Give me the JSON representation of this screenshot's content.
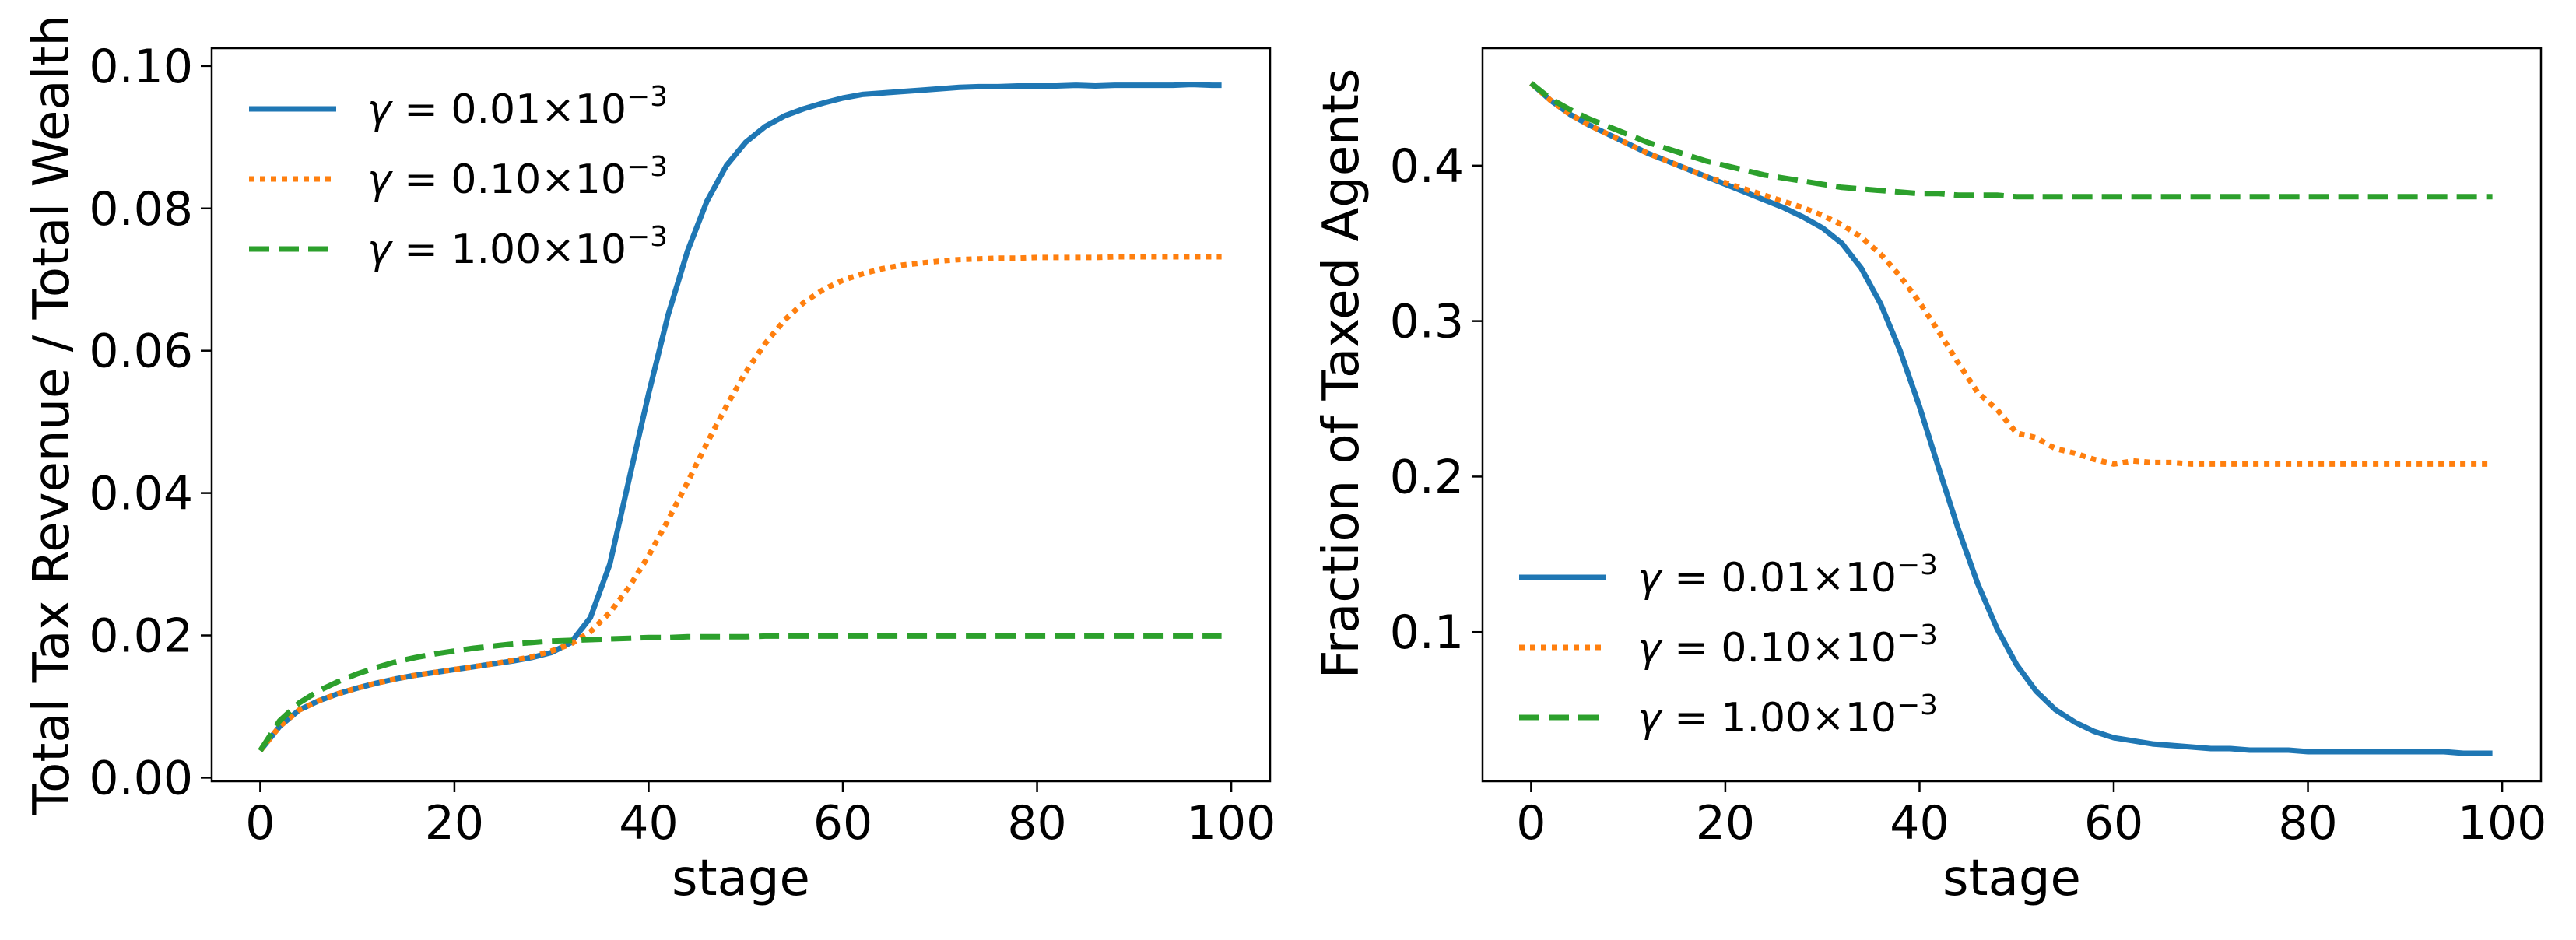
{
  "chart_data": [
    {
      "type": "line",
      "title": "",
      "xlabel": "stage",
      "ylabel": "Total Tax Revenue / Total Wealth",
      "xlim": [
        -5,
        104
      ],
      "ylim": [
        -0.0005,
        0.1025
      ],
      "xticks": [
        0,
        20,
        40,
        60,
        80,
        100
      ],
      "xtick_labels": [
        "0",
        "20",
        "40",
        "60",
        "80",
        "100"
      ],
      "yticks": [
        0.0,
        0.02,
        0.04,
        0.06,
        0.08,
        0.1
      ],
      "ytick_labels": [
        "0.00",
        "0.02",
        "0.04",
        "0.06",
        "0.08",
        "0.10"
      ],
      "legend_position": "upper-left",
      "x": [
        0,
        2,
        4,
        6,
        8,
        10,
        12,
        14,
        16,
        18,
        20,
        22,
        24,
        26,
        28,
        30,
        32,
        34,
        36,
        38,
        40,
        42,
        44,
        46,
        48,
        50,
        52,
        54,
        56,
        58,
        60,
        62,
        64,
        66,
        68,
        70,
        72,
        74,
        76,
        78,
        80,
        82,
        84,
        86,
        88,
        90,
        92,
        94,
        96,
        98,
        99
      ],
      "series": [
        {
          "name": "γ = 0.01×10⁻³",
          "legend_prefix": "γ = 0.01×10",
          "legend_exp": "−3",
          "color": "#1f77b4",
          "style": "solid",
          "values": [
            0.0038,
            0.0072,
            0.0095,
            0.0108,
            0.0118,
            0.0126,
            0.0133,
            0.0139,
            0.0144,
            0.0148,
            0.0152,
            0.0156,
            0.016,
            0.0164,
            0.0169,
            0.0176,
            0.019,
            0.0225,
            0.03,
            0.042,
            0.054,
            0.065,
            0.074,
            0.081,
            0.086,
            0.0893,
            0.0915,
            0.093,
            0.094,
            0.0948,
            0.0955,
            0.096,
            0.0962,
            0.0964,
            0.0966,
            0.0968,
            0.097,
            0.0971,
            0.0971,
            0.0972,
            0.0972,
            0.0972,
            0.0973,
            0.0972,
            0.0973,
            0.0973,
            0.0973,
            0.0973,
            0.0974,
            0.0973,
            0.0973
          ]
        },
        {
          "name": "γ = 0.10×10⁻³",
          "legend_prefix": "γ = 0.10×10",
          "legend_exp": "−3",
          "color": "#ff7f0e",
          "style": "dotted",
          "values": [
            0.0038,
            0.0072,
            0.0095,
            0.0108,
            0.0118,
            0.0126,
            0.0133,
            0.0139,
            0.0144,
            0.0148,
            0.0152,
            0.0156,
            0.016,
            0.0165,
            0.017,
            0.0178,
            0.0188,
            0.0205,
            0.0232,
            0.0268,
            0.0312,
            0.0362,
            0.0415,
            0.047,
            0.0522,
            0.057,
            0.061,
            0.0643,
            0.0668,
            0.0686,
            0.0699,
            0.0708,
            0.0715,
            0.072,
            0.0723,
            0.0726,
            0.0728,
            0.0729,
            0.073,
            0.073,
            0.0731,
            0.0731,
            0.0731,
            0.0731,
            0.0732,
            0.0732,
            0.0732,
            0.0732,
            0.0732,
            0.0732,
            0.0732
          ]
        },
        {
          "name": "γ = 1.00×10⁻³",
          "legend_prefix": "γ = 1.00×10",
          "legend_exp": "−3",
          "color": "#2ca02c",
          "style": "dashed",
          "values": [
            0.0038,
            0.008,
            0.0105,
            0.0122,
            0.0135,
            0.0146,
            0.0155,
            0.0163,
            0.0169,
            0.0174,
            0.0178,
            0.0182,
            0.0185,
            0.0188,
            0.019,
            0.0192,
            0.0193,
            0.0194,
            0.0195,
            0.0196,
            0.0197,
            0.0197,
            0.0198,
            0.0198,
            0.0198,
            0.0198,
            0.0199,
            0.0199,
            0.0199,
            0.0199,
            0.0199,
            0.0199,
            0.0199,
            0.0199,
            0.0199,
            0.0199,
            0.0199,
            0.0199,
            0.0199,
            0.0199,
            0.0199,
            0.0199,
            0.0199,
            0.0199,
            0.0199,
            0.0199,
            0.0199,
            0.0199,
            0.0199,
            0.0199,
            0.0199
          ]
        }
      ]
    },
    {
      "type": "line",
      "title": "",
      "xlabel": "stage",
      "ylabel": "Fraction of Taxed Agents",
      "xlim": [
        -5,
        104
      ],
      "ylim": [
        0.004,
        0.4755
      ],
      "xticks": [
        0,
        20,
        40,
        60,
        80,
        100
      ],
      "xtick_labels": [
        "0",
        "20",
        "40",
        "60",
        "80",
        "100"
      ],
      "yticks": [
        0.1,
        0.2,
        0.3,
        0.4
      ],
      "ytick_labels": [
        "0.1",
        "0.2",
        "0.3",
        "0.4"
      ],
      "legend_position": "lower-left",
      "x": [
        0,
        2,
        4,
        6,
        8,
        10,
        12,
        14,
        16,
        18,
        20,
        22,
        24,
        26,
        28,
        30,
        32,
        34,
        36,
        38,
        40,
        42,
        44,
        46,
        48,
        50,
        52,
        54,
        56,
        58,
        60,
        62,
        64,
        66,
        68,
        70,
        72,
        74,
        76,
        78,
        80,
        82,
        84,
        86,
        88,
        90,
        92,
        94,
        96,
        98,
        99
      ],
      "series": [
        {
          "name": "γ = 0.01×10⁻³",
          "legend_prefix": "γ = 0.01×10",
          "legend_exp": "−3",
          "color": "#1f77b4",
          "style": "solid",
          "values": [
            0.453,
            0.442,
            0.433,
            0.426,
            0.42,
            0.414,
            0.408,
            0.403,
            0.398,
            0.393,
            0.388,
            0.383,
            0.378,
            0.373,
            0.367,
            0.36,
            0.35,
            0.334,
            0.311,
            0.281,
            0.245,
            0.205,
            0.166,
            0.131,
            0.102,
            0.079,
            0.062,
            0.05,
            0.042,
            0.036,
            0.032,
            0.03,
            0.028,
            0.027,
            0.026,
            0.025,
            0.025,
            0.024,
            0.024,
            0.024,
            0.023,
            0.023,
            0.023,
            0.023,
            0.023,
            0.023,
            0.023,
            0.023,
            0.022,
            0.022,
            0.022
          ]
        },
        {
          "name": "γ = 0.10×10⁻³",
          "legend_prefix": "γ = 0.10×10",
          "legend_exp": "−3",
          "color": "#ff7f0e",
          "style": "dotted",
          "values": [
            0.453,
            0.442,
            0.433,
            0.426,
            0.42,
            0.414,
            0.408,
            0.403,
            0.398,
            0.393,
            0.389,
            0.385,
            0.381,
            0.377,
            0.373,
            0.368,
            0.362,
            0.354,
            0.343,
            0.329,
            0.312,
            0.293,
            0.273,
            0.254,
            0.243,
            0.228,
            0.225,
            0.218,
            0.215,
            0.211,
            0.208,
            0.21,
            0.209,
            0.209,
            0.208,
            0.208,
            0.208,
            0.208,
            0.208,
            0.208,
            0.208,
            0.208,
            0.208,
            0.208,
            0.208,
            0.208,
            0.208,
            0.208,
            0.208,
            0.208,
            0.208
          ]
        },
        {
          "name": "γ = 1.00×10⁻³",
          "legend_prefix": "γ = 1.00×10",
          "legend_exp": "−3",
          "color": "#2ca02c",
          "style": "dashed",
          "values": [
            0.453,
            0.443,
            0.436,
            0.43,
            0.425,
            0.42,
            0.415,
            0.411,
            0.407,
            0.403,
            0.4,
            0.397,
            0.394,
            0.392,
            0.39,
            0.388,
            0.386,
            0.385,
            0.384,
            0.383,
            0.382,
            0.382,
            0.381,
            0.381,
            0.381,
            0.38,
            0.38,
            0.38,
            0.38,
            0.38,
            0.38,
            0.38,
            0.38,
            0.38,
            0.38,
            0.38,
            0.38,
            0.38,
            0.38,
            0.38,
            0.38,
            0.38,
            0.38,
            0.38,
            0.38,
            0.38,
            0.38,
            0.38,
            0.38,
            0.38,
            0.38
          ]
        }
      ]
    }
  ]
}
